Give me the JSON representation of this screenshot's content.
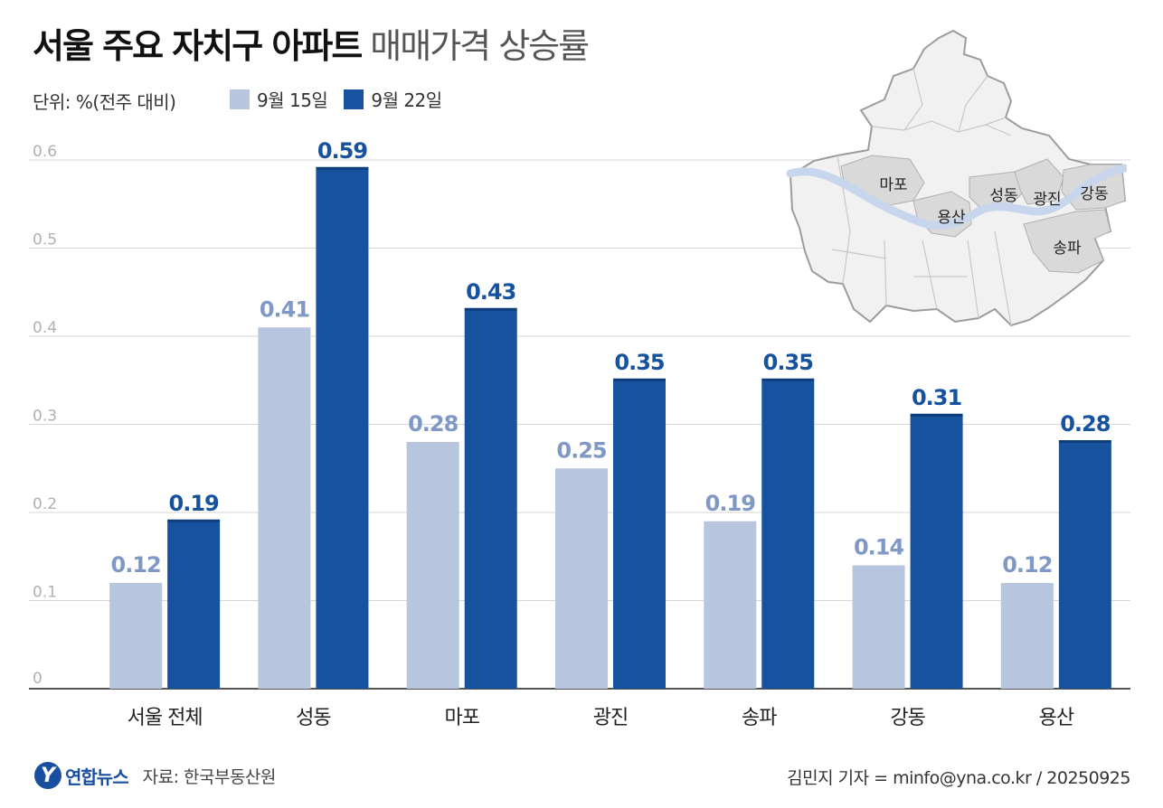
{
  "title_bold": "서울 주요 자치구 아파트",
  "title_light": "매매가격 상승률",
  "unit": "단위: %(전주 대비)",
  "colors": {
    "light": "#b7c5df",
    "dark": "#17529e",
    "light_label": "#7f98c6",
    "dark_label": "#17529e",
    "grid": "#d6d6d6",
    "axis": "#555555",
    "highlight": "#d9d9d9",
    "map_fill": "#f1f1f1",
    "river": "#c7d6ec"
  },
  "chart_data": {
    "type": "bar",
    "title": "서울 주요 자치구 아파트 매매가격 상승률",
    "ylabel": "단위: %(전주 대비)",
    "ylim": [
      0,
      0.6
    ],
    "yticks": [
      "0",
      "0.1",
      "0.2",
      "0.3",
      "0.4",
      "0.5",
      "0.6"
    ],
    "categories": [
      "서울 전체",
      "성동",
      "마포",
      "광진",
      "송파",
      "강동",
      "용산"
    ],
    "series": [
      {
        "name": "9월 15일",
        "values": [
          0.12,
          0.41,
          0.28,
          0.25,
          0.19,
          0.14,
          0.12
        ],
        "labels": [
          "0.12",
          "0.41",
          "0.28",
          "0.25",
          "0.19",
          "0.14",
          "0.12"
        ]
      },
      {
        "name": "9월 22일",
        "values": [
          0.19,
          0.59,
          0.43,
          0.35,
          0.35,
          0.31,
          0.28
        ],
        "labels": [
          "0.19",
          "0.59",
          "0.43",
          "0.35",
          "0.35",
          "0.31",
          "0.28"
        ]
      }
    ],
    "legend_position": "top-left",
    "grid": true
  },
  "map": {
    "labels": [
      "마포",
      "용산",
      "성동",
      "광진",
      "강동",
      "송파"
    ]
  },
  "footer": {
    "logo_mark": "Y",
    "logo": "연합뉴스",
    "source": "자료: 한국부동산원",
    "credit": "김민지 기자 = minfo@yna.co.kr / 20250925"
  }
}
